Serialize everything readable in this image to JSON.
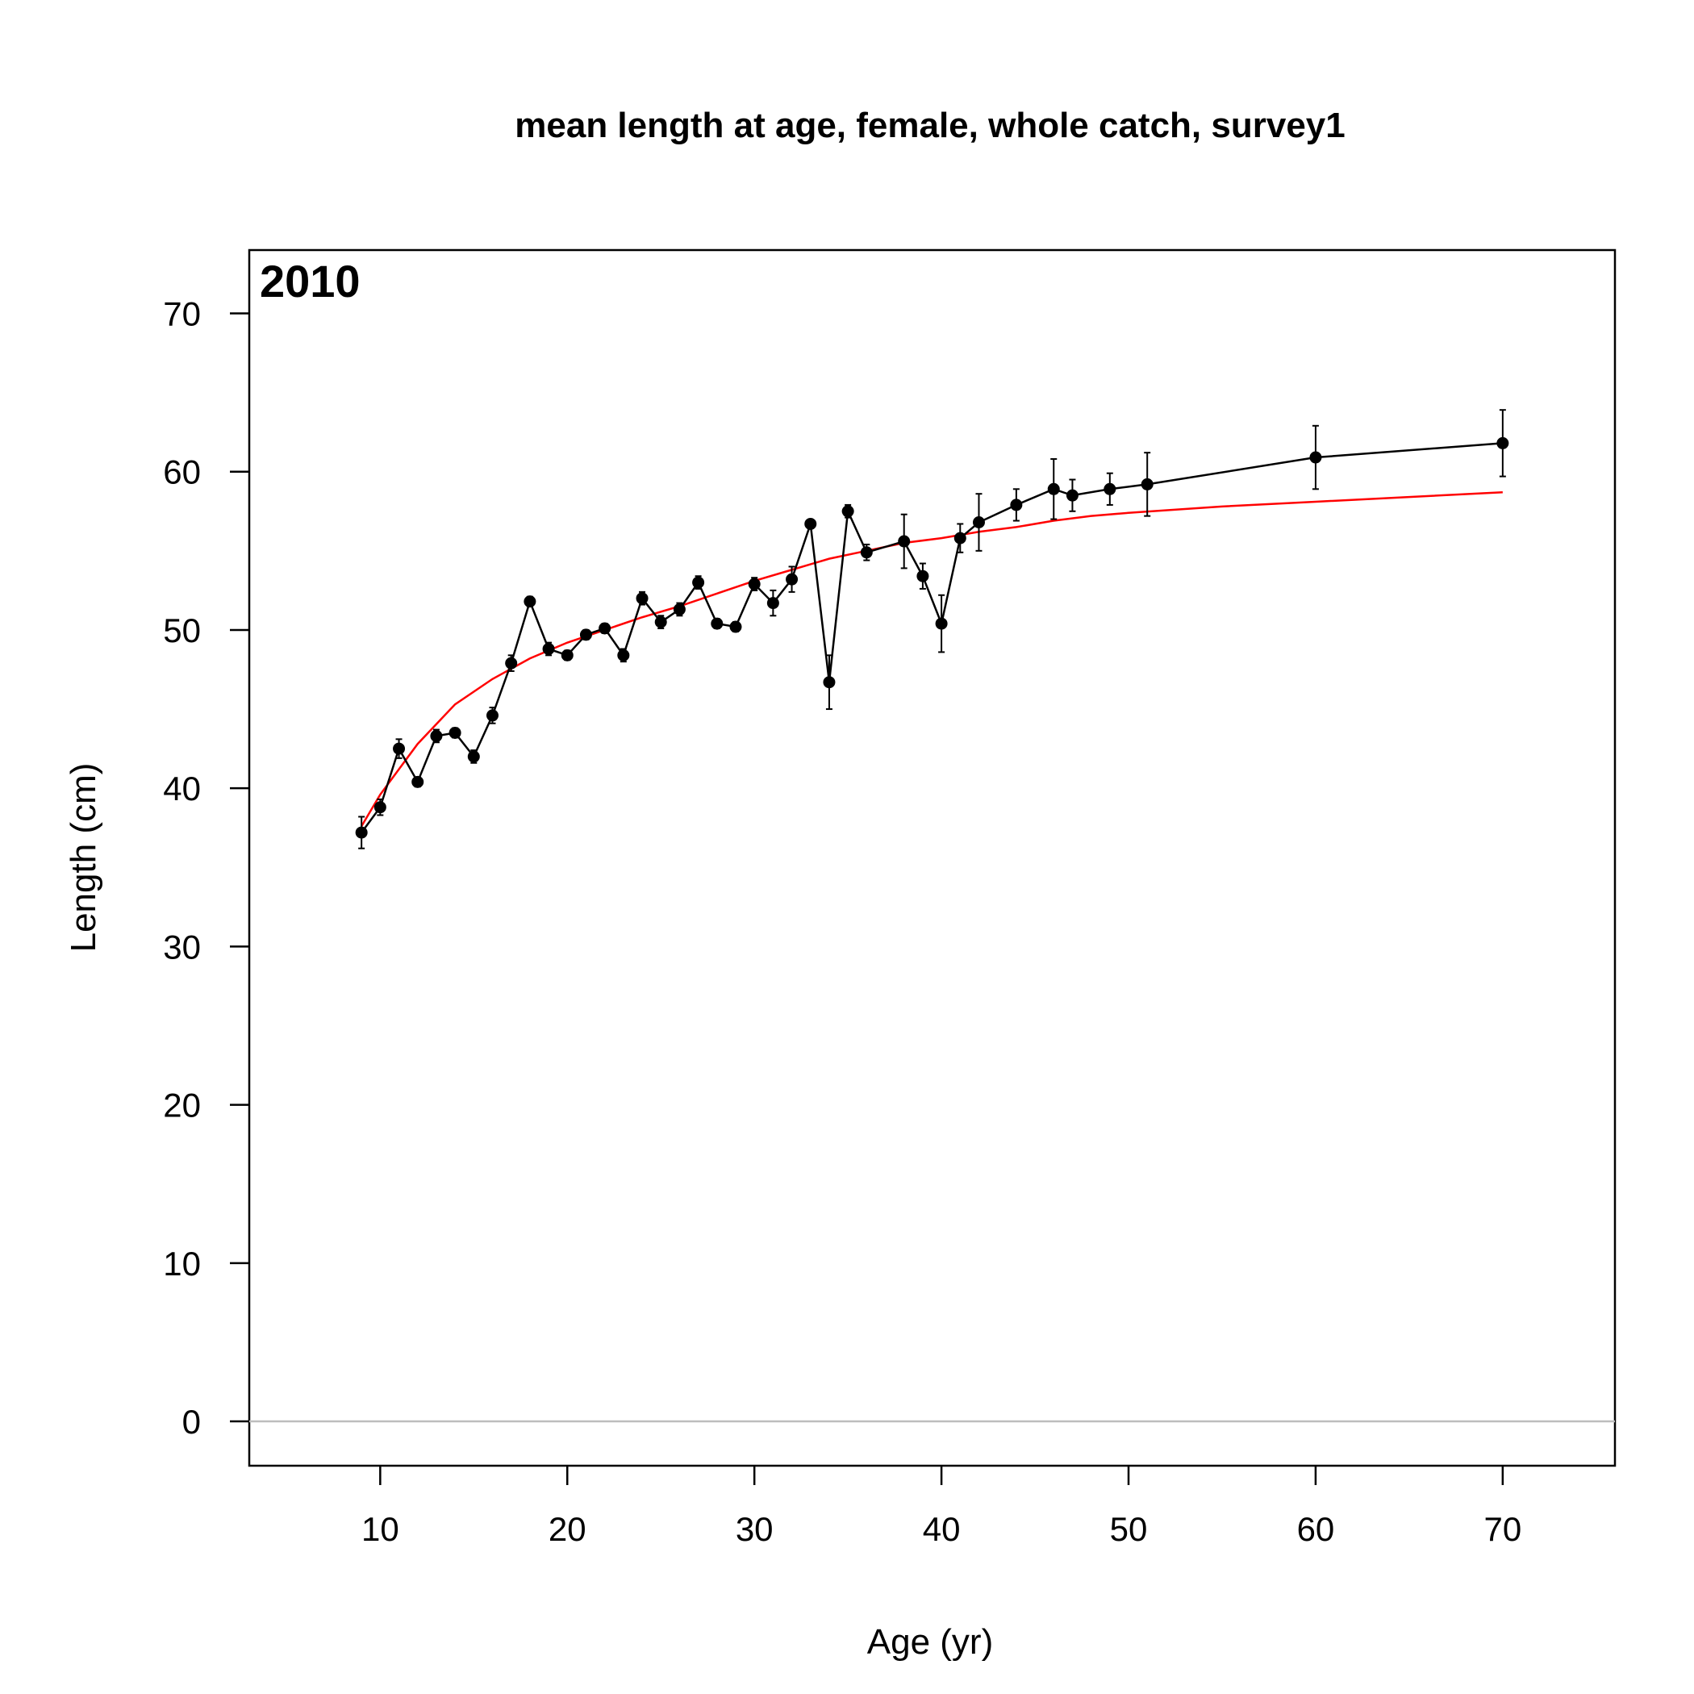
{
  "chart_data": {
    "type": "line",
    "title": "mean length at age, female, whole catch, survey1",
    "panel_label": "2010",
    "xlabel": "Age (yr)",
    "ylabel": "Length (cm)",
    "xlim": [
      3,
      76
    ],
    "ylim": [
      -2.8,
      74
    ],
    "xticks": [
      10,
      20,
      30,
      40,
      50,
      60,
      70
    ],
    "yticks": [
      0,
      10,
      20,
      30,
      40,
      50,
      60,
      70
    ],
    "reference_line_y": 0,
    "series": [
      {
        "kind": "observed",
        "color": "#000000",
        "x": [
          9,
          10,
          11,
          12,
          13,
          14,
          15,
          16,
          17,
          18,
          19,
          20,
          21,
          22,
          23,
          24,
          25,
          26,
          27,
          28,
          29,
          30,
          31,
          32,
          33,
          34,
          35,
          36,
          38,
          39,
          40,
          41,
          42,
          44,
          46,
          47,
          49,
          51,
          60,
          70
        ],
        "y": [
          37.2,
          38.8,
          42.5,
          40.4,
          43.3,
          43.5,
          42.0,
          44.6,
          47.9,
          51.8,
          48.8,
          48.4,
          49.7,
          50.1,
          48.4,
          52.0,
          50.5,
          51.3,
          53.0,
          50.4,
          50.2,
          52.9,
          51.7,
          53.2,
          56.7,
          46.7,
          57.5,
          54.9,
          55.6,
          53.4,
          50.4,
          55.8,
          56.8,
          57.9,
          58.9,
          58.5,
          58.9,
          59.2,
          60.9,
          61.8
        ],
        "error_low": [
          36.2,
          38.3,
          41.9,
          40.1,
          42.9,
          43.2,
          41.6,
          44.1,
          47.4,
          51.5,
          48.4,
          48.1,
          49.4,
          49.8,
          48.0,
          51.6,
          50.1,
          50.9,
          52.6,
          50.1,
          49.9,
          52.5,
          50.9,
          52.4,
          56.5,
          45.0,
          57.1,
          54.4,
          53.9,
          52.6,
          48.6,
          54.9,
          55.0,
          56.9,
          57.0,
          57.5,
          57.9,
          57.2,
          58.9,
          59.7
        ],
        "error_high": [
          38.2,
          39.3,
          43.1,
          40.7,
          43.7,
          43.8,
          42.4,
          45.1,
          48.4,
          52.1,
          49.2,
          48.7,
          50.0,
          50.4,
          48.8,
          52.4,
          50.9,
          51.7,
          53.4,
          50.7,
          50.5,
          53.3,
          52.5,
          54.0,
          56.9,
          48.4,
          57.9,
          55.4,
          57.3,
          54.2,
          52.2,
          56.7,
          58.6,
          58.9,
          60.8,
          59.5,
          59.9,
          61.2,
          62.9,
          63.9
        ]
      },
      {
        "kind": "expected",
        "color": "#ff0000",
        "x": [
          9,
          10,
          12,
          14,
          16,
          18,
          20,
          22,
          24,
          26,
          28,
          30,
          32,
          34,
          36,
          38,
          40,
          42,
          44,
          46,
          48,
          50,
          55,
          60,
          65,
          70
        ],
        "y": [
          37.6,
          39.6,
          42.8,
          45.3,
          46.9,
          48.2,
          49.2,
          50.0,
          50.8,
          51.5,
          52.3,
          53.1,
          53.8,
          54.5,
          55.0,
          55.5,
          55.8,
          56.2,
          56.5,
          56.9,
          57.2,
          57.4,
          57.8,
          58.1,
          58.4,
          58.7
        ]
      }
    ]
  }
}
